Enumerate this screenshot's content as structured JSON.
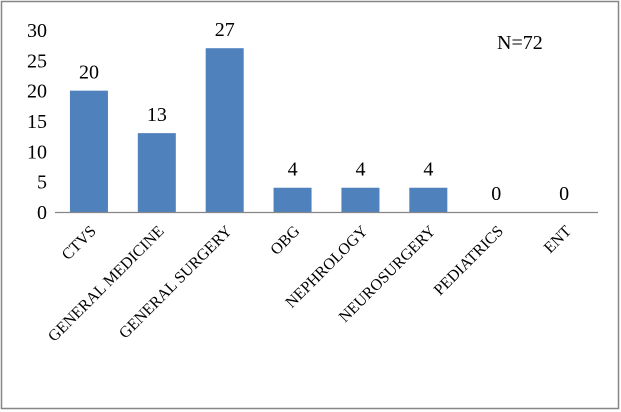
{
  "chart_data": {
    "type": "bar",
    "categories": [
      "CTVS",
      "GENERAL MEDICINE",
      "GENERAL SURGERY",
      "OBG",
      "NEPHROLOGY",
      "NEUROSURGERY",
      "PEDIATRICS",
      "ENT"
    ],
    "values": [
      20,
      13,
      27,
      4,
      4,
      4,
      0,
      0
    ],
    "data_labels": [
      "20",
      "13",
      "27",
      "4",
      "4",
      "4",
      "0",
      "0"
    ],
    "yticks": [
      0,
      5,
      10,
      15,
      20,
      25,
      30
    ],
    "ylim": [
      0,
      30
    ],
    "grid": false,
    "annotation": "N=72",
    "bar_color": "#4f81bd",
    "axis_color": "#868686",
    "border_color": "#868686"
  }
}
